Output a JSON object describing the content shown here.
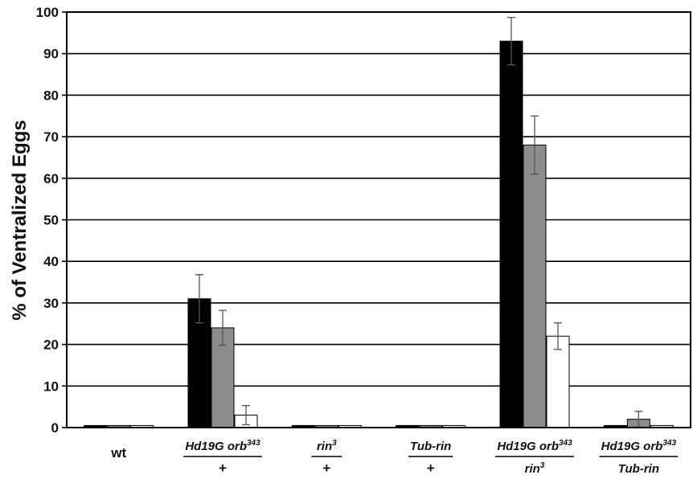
{
  "chart_data": {
    "type": "bar",
    "ylabel": "% of Ventralized Eggs",
    "ylim": [
      0,
      100
    ],
    "yticks": [
      0,
      10,
      20,
      30,
      40,
      50,
      60,
      70,
      80,
      90,
      100
    ],
    "grid": true,
    "legend": "none",
    "groups": [
      {
        "top": "wt",
        "top_sup": "",
        "bottom": "",
        "bottom_sup": ""
      },
      {
        "top": "Hd19G orb",
        "top_sup": "343",
        "bottom": "+",
        "bottom_sup": ""
      },
      {
        "top": "rin",
        "top_sup": "3",
        "bottom": "+",
        "bottom_sup": ""
      },
      {
        "top": "Tub-rin",
        "top_sup": "",
        "bottom": "+",
        "bottom_sup": ""
      },
      {
        "top": "Hd19G orb",
        "top_sup": "343",
        "bottom": "rin",
        "bottom_sup": "3"
      },
      {
        "top": "Hd19G orb",
        "top_sup": "343",
        "bottom": "Tub-rin",
        "bottom_sup": ""
      }
    ],
    "series": [
      {
        "color": "#000000",
        "values": [
          0.5,
          31,
          0.5,
          0.5,
          93,
          0.5
        ],
        "errors": [
          0,
          5.8,
          0,
          0,
          5.7,
          0
        ]
      },
      {
        "color": "#8c8c8c",
        "values": [
          0.5,
          24,
          0.5,
          0.5,
          68,
          2
        ],
        "errors": [
          0,
          4.2,
          0,
          0,
          7.0,
          1.9
        ]
      },
      {
        "color": "#ffffff",
        "values": [
          0.5,
          3,
          0.5,
          0.5,
          22,
          0.5
        ],
        "errors": [
          0,
          2.3,
          0,
          0,
          3.2,
          0
        ]
      }
    ]
  }
}
